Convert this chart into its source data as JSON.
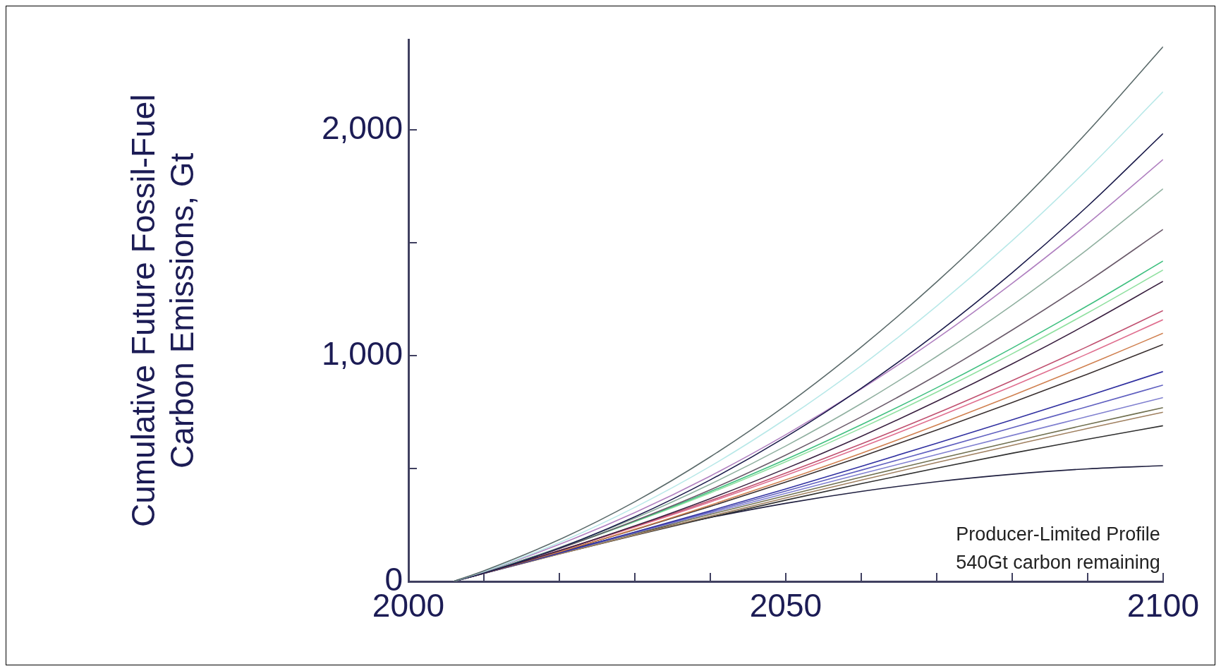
{
  "chart_data": {
    "type": "line",
    "ylabel": "Cumulative Future Fossil-Fuel Carbon Emissions, Gt",
    "annotations": [
      "Producer-Limited Profile",
      "540Gt carbon remaining"
    ],
    "x": [
      2006,
      2010,
      2020,
      2030,
      2040,
      2050,
      2060,
      2070,
      2080,
      2090,
      2100
    ],
    "xlim": [
      2000,
      2100
    ],
    "xticks": [
      2000,
      {
        "value": 2010,
        "label": null
      },
      {
        "value": 2020,
        "label": null
      },
      {
        "value": 2030,
        "label": null
      },
      {
        "value": 2040,
        "label": null
      },
      2050,
      {
        "value": 2060,
        "label": null
      },
      {
        "value": 2070,
        "label": null
      },
      {
        "value": 2080,
        "label": null
      },
      {
        "value": 2090,
        "label": null
      },
      2100
    ],
    "ylim": [
      0,
      2400
    ],
    "yticks": [
      0,
      {
        "value": 500,
        "label": null
      },
      {
        "value": 1000,
        "label": "1,000"
      },
      {
        "value": 1500,
        "label": null
      },
      {
        "value": 2000,
        "label": "2,000"
      }
    ],
    "grid": false,
    "legend": false,
    "marker": "none",
    "line_style": "solid",
    "series": [
      {
        "color": "#5a6a6a",
        "values": [
          0,
          47,
          185,
          353,
          552,
          780,
          1039,
          1327,
          1645,
          1993,
          2370
        ]
      },
      {
        "color": "#b8e8e8",
        "values": [
          0,
          44,
          172,
          328,
          510,
          720,
          956,
          1220,
          1510,
          1827,
          2170
        ]
      },
      {
        "color": "#1a1a4a",
        "values": [
          0,
          37,
          148,
          286,
          450,
          640,
          856,
          1099,
          1368,
          1663,
          1985
        ]
      },
      {
        "color": "#b080c0",
        "values": [
          0,
          43,
          164,
          305,
          467,
          650,
          853,
          1076,
          1321,
          1585,
          1870
        ]
      },
      {
        "color": "#90b0a0",
        "values": [
          0,
          39,
          150,
          280,
          431,
          600,
          788,
          997,
          1224,
          1472,
          1740
        ]
      },
      {
        "color": "#6a5a6a",
        "values": [
          0,
          38,
          145,
          269,
          406,
          560,
          729,
          913,
          1114,
          1329,
          1560
        ]
      },
      {
        "color": "#40c080",
        "values": [
          0,
          40,
          148,
          267,
          398,
          540,
          694,
          858,
          1034,
          1222,
          1420
        ]
      },
      {
        "color": "#90e0a0",
        "values": [
          0,
          40,
          146,
          264,
          392,
          530,
          679,
          839,
          1009,
          1190,
          1380
        ]
      },
      {
        "color": "#3a2040",
        "values": [
          0,
          37,
          136,
          246,
          367,
          500,
          643,
          798,
          964,
          1141,
          1330
        ]
      },
      {
        "color": "#c05070",
        "values": [
          0,
          38,
          137,
          244,
          358,
          480,
          609,
          745,
          890,
          1041,
          1200
        ]
      },
      {
        "color": "#e07090",
        "values": [
          0,
          38,
          136,
          241,
          352,
          470,
          595,
          727,
          865,
          1009,
          1160
        ]
      },
      {
        "color": "#d08050",
        "values": [
          0,
          36,
          131,
          231,
          338,
          450,
          568,
          693,
          823,
          959,
          1100
        ]
      },
      {
        "color": "#3a3030",
        "values": [
          0,
          36,
          131,
          229,
          332,
          440,
          553,
          671,
          793,
          919,
          1050
        ]
      },
      {
        "color": "#3030a0",
        "values": [
          0,
          35,
          126,
          219,
          313,
          410,
          510,
          612,
          716,
          822,
          930
        ]
      },
      {
        "color": "#6060c0",
        "values": [
          0,
          36,
          126,
          217,
          308,
          400,
          493,
          586,
          681,
          775,
          870
        ]
      },
      {
        "color": "#8080d0",
        "values": [
          0,
          36,
          125,
          215,
          303,
          390,
          477,
          562,
          647,
          731,
          815
        ]
      },
      {
        "color": "#707050",
        "values": [
          0,
          36,
          125,
          212,
          297,
          380,
          462,
          542,
          619,
          696,
          770
        ]
      },
      {
        "color": "#a08060",
        "values": [
          0,
          35,
          121,
          206,
          289,
          370,
          449,
          527,
          603,
          678,
          750
        ]
      },
      {
        "color": "#303030",
        "values": [
          0,
          36,
          122,
          204,
          284,
          360,
          433,
          502,
          568,
          630,
          690
        ]
      },
      {
        "color": "#202040",
        "values": [
          0,
          39,
          131,
          212,
          283,
          346,
          399,
          442,
          475,
          499,
          513
        ]
      }
    ]
  }
}
